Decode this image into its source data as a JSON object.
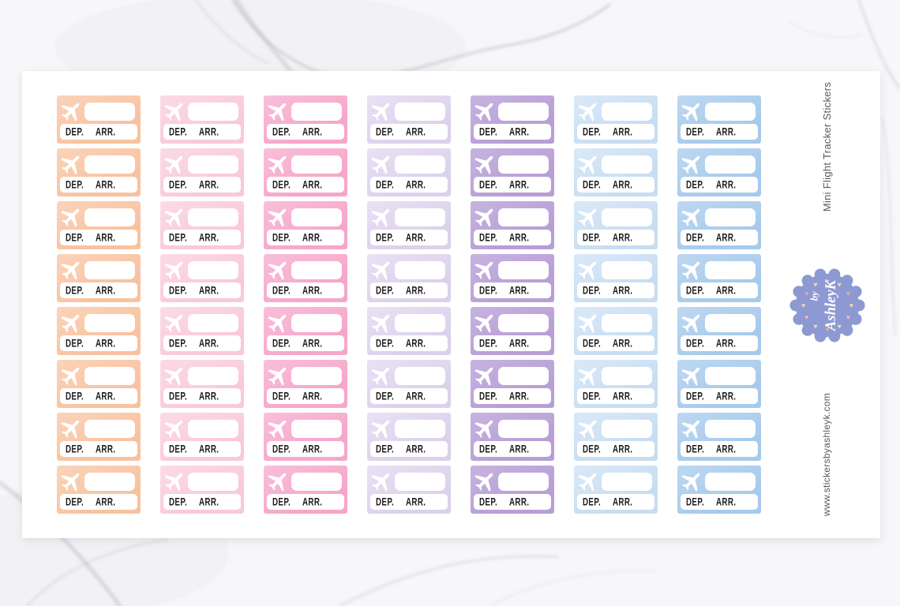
{
  "sheet": {
    "rows": 8,
    "columns": [
      {
        "name": "peach",
        "color": "#F8C2A0",
        "color_light": "#FBD4BA"
      },
      {
        "name": "pink",
        "color": "#F9C9DB",
        "color_light": "#FCDAE7"
      },
      {
        "name": "hot-pink",
        "color": "#F6A6CB",
        "color_light": "#F9BFD9"
      },
      {
        "name": "lavender",
        "color": "#DCD1EB",
        "color_light": "#E9E1F4"
      },
      {
        "name": "purple",
        "color": "#B79FD5",
        "color_light": "#C7B3E0"
      },
      {
        "name": "light-blue",
        "color": "#C8DDF2",
        "color_light": "#DAE9F8"
      },
      {
        "name": "blue",
        "color": "#A7CAEB",
        "color_light": "#BDD8F2"
      }
    ],
    "sticker": {
      "icon": "airplane-icon",
      "dep_label": "DEP.",
      "arr_label": "ARR."
    }
  },
  "sidebar": {
    "title": "Mini Flight Tracker Stickers",
    "website": "www.stickersbyashleyk.com",
    "badge": {
      "text_line1": "by",
      "text_line2": "AshleyK",
      "color": "#8C99D2",
      "heart_colors": [
        "#F6B7C6",
        "#F7D9A2",
        "#F2A69E",
        "#F7D9A2"
      ]
    }
  }
}
